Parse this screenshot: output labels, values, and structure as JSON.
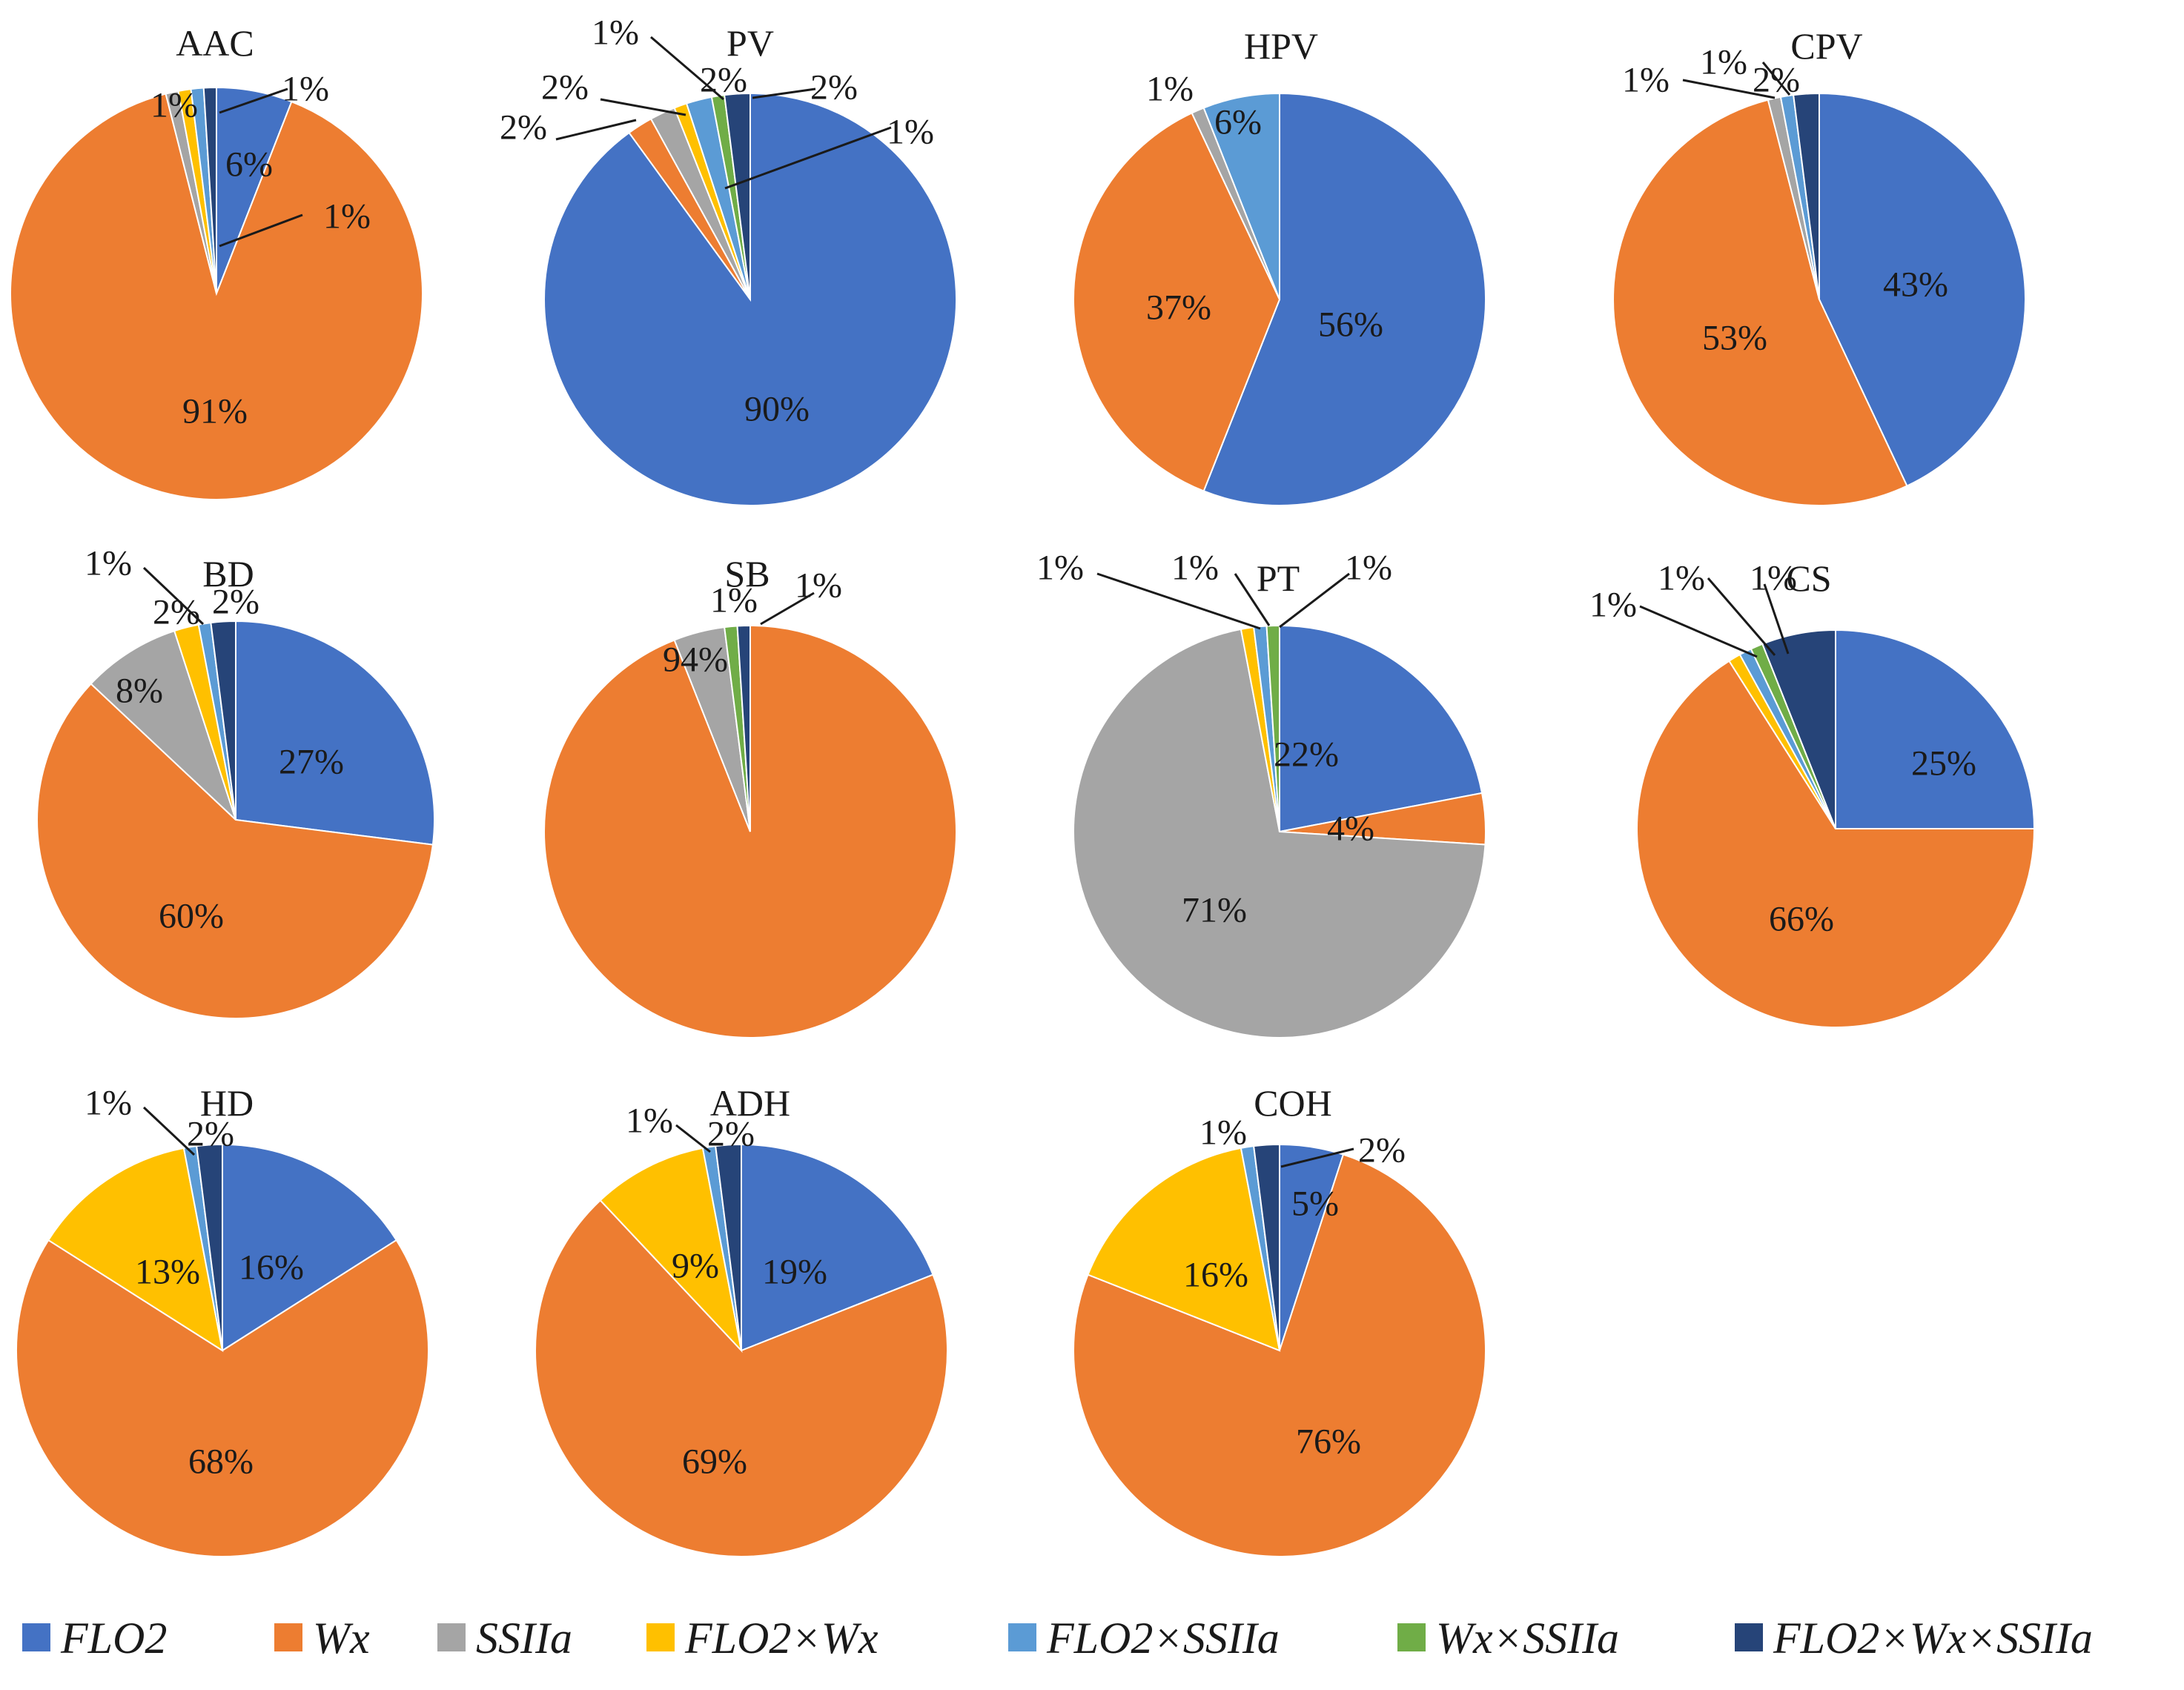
{
  "chart_data": {
    "type": "pie",
    "series_names": [
      "FLO2",
      "Wx",
      "SSIIa",
      "FLO2×Wx",
      "FLO2×SSIIa",
      "Wx×SSIIa",
      "FLO2×Wx×SSIIa"
    ],
    "colors": [
      "#4472c4",
      "#ed7d31",
      "#a5a5a5",
      "#ffc000",
      "#5b9bd5",
      "#70ad47",
      "#264478"
    ],
    "legend_position": "bottom",
    "pies": [
      {
        "title": "AAC",
        "values": [
          6,
          91,
          1,
          1,
          1,
          0,
          1
        ],
        "labels": [
          "6%",
          "91%",
          "",
          "1%",
          "",
          "",
          "1%"
        ],
        "extra_labels": [
          "1%"
        ]
      },
      {
        "title": "PV",
        "values": [
          90,
          2,
          2,
          1,
          2,
          1,
          2
        ],
        "labels": [
          "90%",
          "2%",
          "2%",
          "1%",
          "2%",
          "1%",
          "2%"
        ]
      },
      {
        "title": "HPV",
        "values": [
          56,
          37,
          1,
          0,
          6,
          0,
          0
        ],
        "labels": [
          "56%",
          "37%",
          "1%",
          "",
          "6%",
          "",
          ""
        ]
      },
      {
        "title": "CPV",
        "values": [
          43,
          53,
          1,
          0,
          1,
          0,
          2
        ],
        "labels": [
          "43%",
          "53%",
          "1%",
          "",
          "1%",
          "",
          "2%"
        ]
      },
      {
        "title": "BD",
        "values": [
          27,
          60,
          8,
          2,
          1,
          0,
          2
        ],
        "labels": [
          "27%",
          "60%",
          "8%",
          "2%",
          "1%",
          "",
          "2%"
        ]
      },
      {
        "title": "SB",
        "values": [
          0,
          94,
          4,
          0,
          0,
          1,
          1
        ],
        "labels": [
          "",
          "94%",
          "4%",
          "",
          "",
          "1%",
          "1%"
        ]
      },
      {
        "title": "PT",
        "values": [
          22,
          4,
          71,
          1,
          1,
          1,
          0
        ],
        "labels": [
          "22%",
          "4%",
          "71%",
          "1%",
          "1%",
          "1%",
          ""
        ]
      },
      {
        "title": "CS",
        "values": [
          25,
          66,
          0,
          1,
          1,
          1,
          6
        ],
        "labels": [
          "25%",
          "66%",
          "",
          "1%",
          "1%",
          "1%",
          "6%"
        ]
      },
      {
        "title": "HD",
        "values": [
          16,
          68,
          0,
          13,
          1,
          0,
          2
        ],
        "labels": [
          "16%",
          "68%",
          "",
          "13%",
          "1%",
          "",
          "2%"
        ]
      },
      {
        "title": "ADH",
        "values": [
          19,
          69,
          0,
          9,
          1,
          0,
          2
        ],
        "labels": [
          "19%",
          "69%",
          "",
          "9%",
          "1%",
          "",
          "2%"
        ]
      },
      {
        "title": "COH",
        "values": [
          5,
          76,
          0,
          16,
          1,
          0,
          2
        ],
        "labels": [
          "5%",
          "76%",
          "",
          "16%",
          "1%",
          "",
          "2%"
        ]
      }
    ]
  }
}
